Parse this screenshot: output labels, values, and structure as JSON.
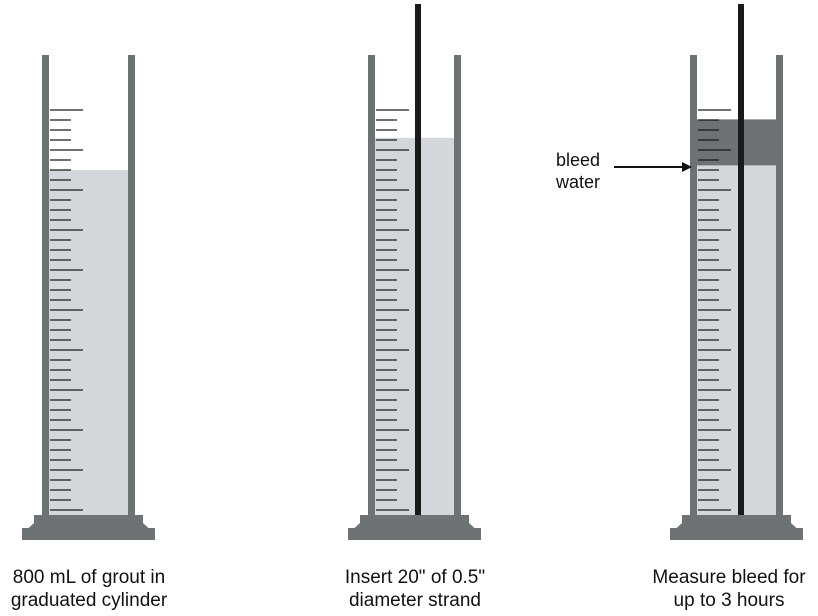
{
  "colors": {
    "cylinder": "#6d7275",
    "grout": "#d3d6da",
    "bleed_water": "#6d7275",
    "strand": "#1a1a1a",
    "tick": "#1a1a1a",
    "text": "#111111"
  },
  "steps": [
    {
      "caption_line1": "800 mL of grout in",
      "caption_line2": "graduated cylinder",
      "grout_level": 0.75,
      "has_strand": false,
      "has_bleed": false
    },
    {
      "caption_line1": "Insert 20\" of 0.5\"",
      "caption_line2": "diameter strand",
      "grout_level": 0.82,
      "has_strand": true,
      "has_bleed": false
    },
    {
      "caption_line1": "Measure bleed for",
      "caption_line2": "up to 3 hours",
      "grout_level": 0.76,
      "bleed_level": 0.86,
      "has_strand": true,
      "has_bleed": true
    }
  ],
  "annotation": {
    "line1": "bleed",
    "line2": "water",
    "icon": "arrow-right-icon"
  }
}
